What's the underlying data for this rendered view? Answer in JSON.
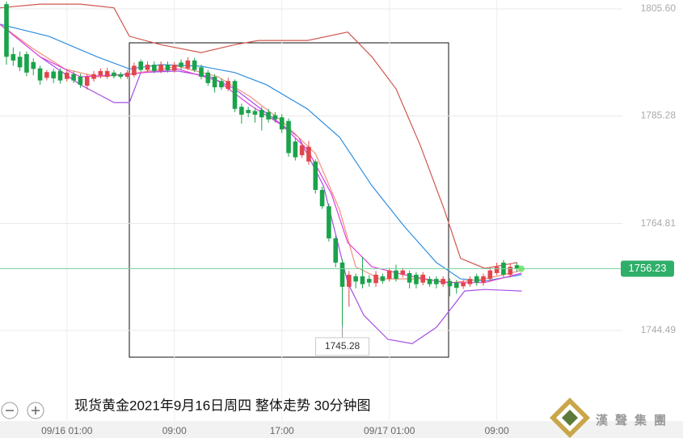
{
  "chart_data": {
    "type": "candlestick",
    "title": "现货黄金2021年9月16日周四 整体走势 30分钟图",
    "logo": "漢聲集團",
    "up_color": "#e0474c",
    "down_color": "#1aa34a",
    "open": [
      1806.5,
      1797.0,
      1796.5,
      1797.0,
      1795.5,
      1794.3,
      1792.5,
      1793.7,
      1793.8,
      1792.3,
      1793.2,
      1792.7,
      1791.0,
      1792.3,
      1793.0,
      1792.7,
      1793.5,
      1793.2,
      1792.7,
      1793.0,
      1795.6,
      1794.0,
      1795.0,
      1793.8,
      1795.0,
      1793.9,
      1795.4,
      1794.3,
      1795.8,
      1794.5,
      1793.5,
      1792.7,
      1791.9,
      1790.4,
      1791.9,
      1787.0,
      1786.4,
      1786.2,
      1786.4,
      1786.0,
      1785.4,
      1785.0,
      1784.3,
      1780.4,
      1777.8,
      1776.6,
      1776.6,
      1771.2,
      1768.1,
      1762.0,
      1757.4,
      1752.8,
      1754.8,
      1754.8,
      1754.3,
      1753.5,
      1754.8,
      1754.3,
      1755.9,
      1755.1,
      1755.4,
      1755.1,
      1753.6,
      1754.3,
      1754.3,
      1753.3,
      1753.9,
      1753.6,
      1752.9,
      1753.3,
      1754.8,
      1753.6,
      1754.3,
      1755.4,
      1757.4,
      1755.1,
      1756.9
    ],
    "high": [
      1807.0,
      1798.3,
      1797.5,
      1797.5,
      1796.2,
      1794.8,
      1794.0,
      1794.2,
      1794.3,
      1794.0,
      1793.8,
      1793.3,
      1793.2,
      1793.8,
      1794.3,
      1794.4,
      1794.0,
      1793.6,
      1794.0,
      1795.4,
      1796.0,
      1795.6,
      1795.6,
      1795.6,
      1795.6,
      1795.5,
      1796.0,
      1796.4,
      1796.3,
      1795.0,
      1794.0,
      1793.2,
      1792.4,
      1792.5,
      1792.2,
      1787.6,
      1787.0,
      1786.8,
      1787.0,
      1786.6,
      1786.0,
      1785.6,
      1784.8,
      1781.0,
      1780.2,
      1780.5,
      1777.0,
      1771.8,
      1768.6,
      1762.5,
      1758.0,
      1755.8,
      1755.3,
      1758.5,
      1755.0,
      1755.8,
      1755.3,
      1756.4,
      1757.0,
      1756.4,
      1755.9,
      1755.6,
      1755.6,
      1754.8,
      1754.8,
      1754.8,
      1754.4,
      1754.1,
      1754.1,
      1754.8,
      1755.3,
      1755.3,
      1756.4,
      1757.4,
      1757.9,
      1757.2,
      1757.4
    ],
    "low": [
      1795.0,
      1794.8,
      1793.8,
      1792.8,
      1793.0,
      1791.2,
      1792.0,
      1791.5,
      1791.4,
      1791.8,
      1791.5,
      1790.6,
      1790.3,
      1791.8,
      1792.4,
      1792.3,
      1792.4,
      1792.3,
      1792.3,
      1792.6,
      1793.6,
      1793.6,
      1793.4,
      1793.4,
      1793.5,
      1793.5,
      1794.0,
      1794.0,
      1793.6,
      1792.2,
      1791.0,
      1789.7,
      1790.2,
      1790.0,
      1786.0,
      1783.8,
      1785.0,
      1784.0,
      1782.5,
      1784.0,
      1784.0,
      1782.0,
      1777.5,
      1776.8,
      1777.3,
      1776.0,
      1770.5,
      1767.6,
      1761.4,
      1756.5,
      1745.3,
      1749.0,
      1752.5,
      1752.5,
      1752.8,
      1752.8,
      1753.4,
      1753.8,
      1753.8,
      1754.6,
      1752.5,
      1752.5,
      1753.1,
      1752.8,
      1752.5,
      1752.8,
      1751.0,
      1751.5,
      1752.4,
      1752.8,
      1753.0,
      1753.0,
      1753.8,
      1755.0,
      1754.6,
      1754.6,
      1755.6
    ],
    "close": [
      1796.5,
      1795.8,
      1794.5,
      1793.5,
      1794.2,
      1792.0,
      1793.6,
      1792.4,
      1792.0,
      1793.5,
      1792.0,
      1791.2,
      1792.7,
      1793.2,
      1793.8,
      1793.8,
      1792.8,
      1792.7,
      1793.5,
      1794.8,
      1794.0,
      1795.0,
      1793.8,
      1795.0,
      1793.9,
      1795.0,
      1794.6,
      1795.8,
      1794.0,
      1792.7,
      1791.5,
      1790.7,
      1790.7,
      1791.9,
      1786.6,
      1785.5,
      1785.8,
      1785.5,
      1785.0,
      1784.6,
      1784.6,
      1782.7,
      1778.2,
      1777.4,
      1779.7,
      1779.4,
      1771.2,
      1768.1,
      1762.0,
      1757.4,
      1752.8,
      1755.1,
      1753.8,
      1753.3,
      1753.6,
      1755.1,
      1753.9,
      1755.9,
      1754.3,
      1755.9,
      1753.6,
      1753.3,
      1755.1,
      1753.3,
      1753.3,
      1754.3,
      1752.9,
      1752.6,
      1753.6,
      1754.3,
      1753.6,
      1754.8,
      1755.9,
      1756.6,
      1755.1,
      1756.6,
      1756.2
    ],
    "series": [
      {
        "color": "#d0574f",
        "x": [
          -1,
          5,
          11,
          16,
          18.3,
          23,
          29,
          34,
          37.5,
          44.8,
          50.8,
          54.4,
          58,
          61.6,
          65.2,
          67.6,
          71.2,
          76
        ],
        "values": [
          1805.8,
          1806.5,
          1806.5,
          1805.8,
          1800.4,
          1798.8,
          1797.3,
          1798.8,
          1799.6,
          1799.6,
          1801.2,
          1796.5,
          1790.4,
          1779.7,
          1767.4,
          1758.2,
          1756.3,
          1757.4
        ]
      },
      {
        "color": "#a64ee6",
        "x": [
          -1,
          5,
          11,
          16,
          18.3,
          20,
          25.5,
          30.3,
          34,
          38.7,
          43.5,
          47.2,
          50.8,
          53.2,
          56.8,
          60.4,
          64,
          66.4,
          68.2,
          71.2,
          76.7
        ],
        "values": [
          1802.7,
          1796.5,
          1791.2,
          1787.8,
          1787.8,
          1793.5,
          1793.8,
          1792.7,
          1790.4,
          1785.8,
          1781.2,
          1772.0,
          1753.6,
          1747.4,
          1742.8,
          1742.0,
          1745.1,
          1749.0,
          1752.0,
          1752.3,
          1752.0
        ]
      },
      {
        "color": "#2f8ee0",
        "x": [
          -1,
          6.3,
          13.5,
          18.3,
          23,
          29,
          34,
          38.7,
          44.8,
          49.6,
          54.4,
          59.2,
          64,
          67.6,
          71.2,
          76.7
        ],
        "values": [
          1802.7,
          1800.4,
          1796.5,
          1794.2,
          1795.0,
          1794.7,
          1793.5,
          1791.2,
          1786.6,
          1781.2,
          1772.0,
          1764.3,
          1757.4,
          1754.3,
          1753.9,
          1755.1
        ]
      },
      {
        "color": "#f2907e",
        "x": [
          -1,
          3.9,
          8.7,
          13.5,
          18.3,
          25.5,
          31.5,
          36.3,
          41,
          46,
          49.6,
          52,
          55.6,
          61.6,
          66.4,
          71.2,
          76.7
        ],
        "values": [
          1802.7,
          1798.1,
          1794.2,
          1792.7,
          1793.2,
          1794.7,
          1792.7,
          1788.9,
          1784.3,
          1778.1,
          1767.4,
          1756.6,
          1754.3,
          1754.3,
          1753.6,
          1754.3,
          1755.9
        ]
      },
      {
        "color": "#e23fe0",
        "x": [
          -1,
          5,
          11,
          18.3,
          25.5,
          31.5,
          36.3,
          41,
          44.8,
          48.4,
          50.8,
          54.4,
          59.2,
          65.2,
          71.2,
          76.7
        ],
        "values": [
          1802.7,
          1796.5,
          1792.7,
          1793.2,
          1794.2,
          1791.9,
          1787.3,
          1783.5,
          1778.9,
          1770.4,
          1761.2,
          1756.6,
          1755.1,
          1753.6,
          1753.6,
          1755.4
        ]
      }
    ],
    "xlim": [
      -0.963,
      100.72
    ],
    "xticks": [
      {
        "value": 9,
        "label": "09/16 01:00"
      },
      {
        "value": 25,
        "label": "09:00"
      },
      {
        "value": 41,
        "label": "17:00"
      },
      {
        "value": 57,
        "label": "09/17 01:00"
      },
      {
        "value": 73,
        "label": "09:00"
      }
    ],
    "ylim": [
      1727.45,
      1807.29
    ],
    "yticks": [
      {
        "value": 1744.49,
        "label": "1744.49"
      },
      {
        "value": 1764.81,
        "label": "1764.81"
      },
      {
        "value": 1785.28,
        "label": "1785.28"
      },
      {
        "value": 1805.6,
        "label": "1805.60"
      }
    ],
    "grid": true,
    "low_marker": 1745.28,
    "last_price": 1756.23
  }
}
